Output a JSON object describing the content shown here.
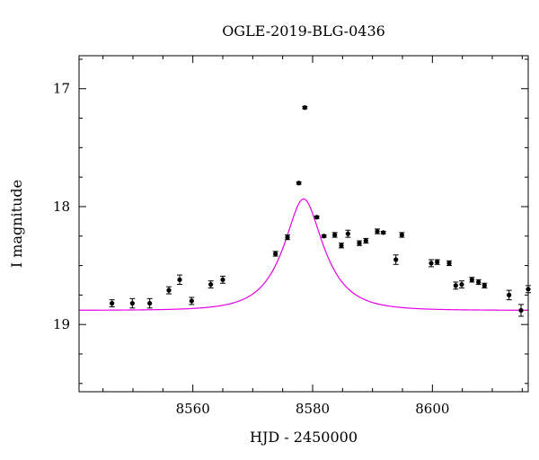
{
  "chart_data": {
    "type": "scatter",
    "title": "OGLE-2019-BLG-0436",
    "xlabel": "HJD - 2450000",
    "ylabel": "I magnitude",
    "xlim": [
      8541,
      8616
    ],
    "ylim": [
      19.57,
      16.72
    ],
    "y_inverted": true,
    "xticks_major": [
      8560,
      8580,
      8600
    ],
    "yticks_major": [
      17,
      18,
      19
    ],
    "xtick_labels": [
      "8560",
      "8580",
      "8600"
    ],
    "ytick_labels": [
      "17",
      "18",
      "19"
    ],
    "grid": false,
    "model_color": "#e600e6",
    "model": {
      "t0": 8578.5,
      "u0": 0.45,
      "tE": 6.0,
      "baseline": 18.88
    },
    "series": [
      {
        "points": [
          {
            "x": 8546.5,
            "y": 18.82,
            "err": 0.03
          },
          {
            "x": 8549.9,
            "y": 18.82,
            "err": 0.04
          },
          {
            "x": 8552.8,
            "y": 18.82,
            "err": 0.04
          },
          {
            "x": 8556.0,
            "y": 18.71,
            "err": 0.03
          },
          {
            "x": 8557.8,
            "y": 18.62,
            "err": 0.04
          },
          {
            "x": 8559.8,
            "y": 18.8,
            "err": 0.03
          },
          {
            "x": 8563.0,
            "y": 18.66,
            "err": 0.03
          },
          {
            "x": 8565.0,
            "y": 18.62,
            "err": 0.03
          },
          {
            "x": 8573.8,
            "y": 18.4,
            "err": 0.02
          },
          {
            "x": 8575.8,
            "y": 18.26,
            "err": 0.02
          },
          {
            "x": 8577.7,
            "y": 17.8,
            "err": 0.01
          },
          {
            "x": 8578.7,
            "y": 17.16,
            "err": 0.01
          },
          {
            "x": 8580.7,
            "y": 18.09,
            "err": 0.01
          },
          {
            "x": 8581.9,
            "y": 18.25,
            "err": 0.01
          },
          {
            "x": 8583.7,
            "y": 18.24,
            "err": 0.02
          },
          {
            "x": 8584.8,
            "y": 18.33,
            "err": 0.02
          },
          {
            "x": 8585.9,
            "y": 18.23,
            "err": 0.03
          },
          {
            "x": 8587.8,
            "y": 18.31,
            "err": 0.02
          },
          {
            "x": 8588.9,
            "y": 18.29,
            "err": 0.02
          },
          {
            "x": 8590.8,
            "y": 18.21,
            "err": 0.02
          },
          {
            "x": 8591.8,
            "y": 18.22,
            "err": 0.01
          },
          {
            "x": 8593.9,
            "y": 18.45,
            "err": 0.04
          },
          {
            "x": 8594.9,
            "y": 18.24,
            "err": 0.02
          },
          {
            "x": 8599.8,
            "y": 18.48,
            "err": 0.03
          },
          {
            "x": 8600.8,
            "y": 18.47,
            "err": 0.02
          },
          {
            "x": 8602.8,
            "y": 18.48,
            "err": 0.02
          },
          {
            "x": 8603.9,
            "y": 18.67,
            "err": 0.03
          },
          {
            "x": 8604.9,
            "y": 18.66,
            "err": 0.03
          },
          {
            "x": 8606.6,
            "y": 18.62,
            "err": 0.02
          },
          {
            "x": 8607.7,
            "y": 18.64,
            "err": 0.02
          },
          {
            "x": 8608.7,
            "y": 18.67,
            "err": 0.02
          },
          {
            "x": 8612.8,
            "y": 18.75,
            "err": 0.04
          },
          {
            "x": 8614.8,
            "y": 18.88,
            "err": 0.05
          },
          {
            "x": 8616.0,
            "y": 18.7,
            "err": 0.03
          }
        ]
      }
    ]
  }
}
